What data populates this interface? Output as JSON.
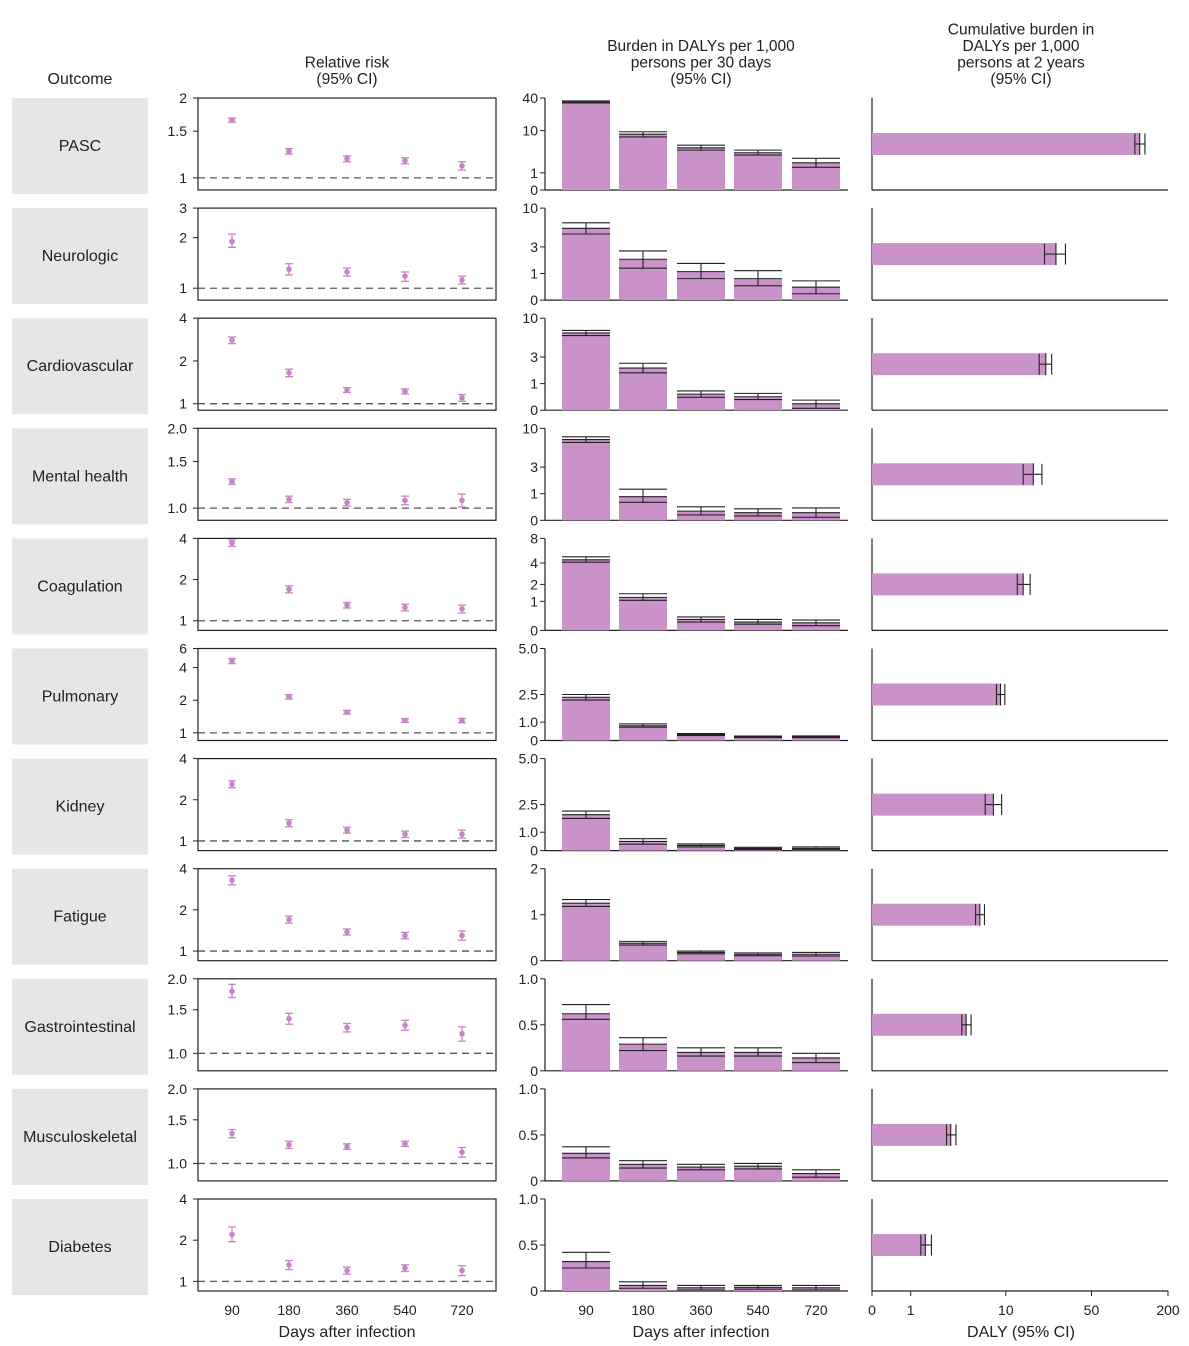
{
  "colors": {
    "accent": "#c993c9",
    "marker": "#c784c7",
    "outcome_box": "#e6e6e6",
    "axis": "#222222",
    "reference_line": "#555555"
  },
  "headers": {
    "outcome": "Outcome",
    "rr": [
      "Relative risk",
      "(95% CI)"
    ],
    "burden": [
      "Burden in DALYs per 1,000",
      "persons per 30 days",
      "(95% CI)"
    ],
    "cumulative": [
      "Cumulative burden in",
      "DALYs per 1,000",
      "persons at 2 years",
      "(95% CI)"
    ]
  },
  "x_axes": {
    "days": [
      "90",
      "180",
      "360",
      "540",
      "720"
    ],
    "rr_label": "Days after infection",
    "burden_label": "Days after infection",
    "cum_ticks": [
      "0",
      "1",
      "10",
      "50",
      "200"
    ],
    "cum_tick_values": [
      0,
      1,
      10,
      50,
      200
    ],
    "cum_label": "DALY (95% CI)"
  },
  "chart_data": [
    {
      "type": "scatter",
      "name": "Relative risk (95% CI)",
      "x": [
        90,
        180,
        360,
        540,
        720
      ],
      "rows": [
        {
          "outcome": "PASC",
          "ticks": [
            "2",
            "1.5",
            "1"
          ],
          "tick_values": [
            2,
            1.5,
            1
          ],
          "ylim": [
            0.9,
            2
          ],
          "values": [
            1.65,
            1.26,
            1.18,
            1.16,
            1.11
          ],
          "lo": [
            1.62,
            1.23,
            1.15,
            1.13,
            1.07
          ],
          "hi": [
            1.68,
            1.29,
            1.21,
            1.19,
            1.15
          ]
        },
        {
          "outcome": "Neurologic",
          "ticks": [
            "3",
            "2",
            "1"
          ],
          "tick_values": [
            3,
            2,
            1
          ],
          "ylim": [
            0.85,
            3
          ],
          "values": [
            1.9,
            1.3,
            1.25,
            1.18,
            1.12
          ],
          "lo": [
            1.75,
            1.2,
            1.18,
            1.1,
            1.06
          ],
          "hi": [
            2.1,
            1.4,
            1.32,
            1.25,
            1.18
          ]
        },
        {
          "outcome": "Cardiovascular",
          "ticks": [
            "4",
            "2",
            "1"
          ],
          "tick_values": [
            4,
            2,
            1
          ],
          "ylim": [
            0.9,
            4
          ],
          "values": [
            2.8,
            1.65,
            1.25,
            1.22,
            1.1
          ],
          "lo": [
            2.65,
            1.55,
            1.2,
            1.17,
            1.04
          ],
          "hi": [
            2.95,
            1.75,
            1.3,
            1.27,
            1.16
          ]
        },
        {
          "outcome": "Mental health",
          "ticks": [
            "2.0",
            "1.5",
            "1.0"
          ],
          "tick_values": [
            2,
            1.5,
            1
          ],
          "ylim": [
            0.9,
            2
          ],
          "values": [
            1.26,
            1.08,
            1.05,
            1.07,
            1.07
          ],
          "lo": [
            1.23,
            1.05,
            1.02,
            1.03,
            1.01
          ],
          "hi": [
            1.29,
            1.11,
            1.08,
            1.11,
            1.13
          ]
        },
        {
          "outcome": "Coagulation",
          "ticks": [
            "4",
            "2",
            "1"
          ],
          "tick_values": [
            4,
            2,
            1
          ],
          "ylim": [
            0.85,
            4
          ],
          "values": [
            3.7,
            1.7,
            1.3,
            1.25,
            1.22
          ],
          "lo": [
            3.5,
            1.6,
            1.24,
            1.18,
            1.14
          ],
          "hi": [
            3.9,
            1.8,
            1.36,
            1.32,
            1.3
          ]
        },
        {
          "outcome": "Pulmonary",
          "ticks": [
            "6",
            "4",
            "2",
            "1"
          ],
          "tick_values": [
            6,
            4,
            2,
            1
          ],
          "ylim": [
            0.85,
            6
          ],
          "values": [
            4.6,
            2.15,
            1.55,
            1.3,
            1.3
          ],
          "lo": [
            4.35,
            2.05,
            1.49,
            1.25,
            1.24
          ],
          "hi": [
            4.85,
            2.25,
            1.61,
            1.35,
            1.36
          ]
        },
        {
          "outcome": "Kidney",
          "ticks": [
            "4",
            "2",
            "1"
          ],
          "tick_values": [
            4,
            2,
            1
          ],
          "ylim": [
            0.85,
            4
          ],
          "values": [
            2.6,
            1.35,
            1.2,
            1.12,
            1.12
          ],
          "lo": [
            2.45,
            1.27,
            1.14,
            1.06,
            1.05
          ],
          "hi": [
            2.75,
            1.43,
            1.26,
            1.18,
            1.2
          ]
        },
        {
          "outcome": "Fatigue",
          "ticks": [
            "4",
            "2",
            "1"
          ],
          "tick_values": [
            4,
            2,
            1
          ],
          "ylim": [
            0.85,
            4
          ],
          "values": [
            3.3,
            1.7,
            1.38,
            1.3,
            1.3
          ],
          "lo": [
            3.05,
            1.6,
            1.31,
            1.23,
            1.2
          ],
          "hi": [
            3.55,
            1.8,
            1.45,
            1.37,
            1.4
          ]
        },
        {
          "outcome": "Gastrointestinal",
          "ticks": [
            "2.0",
            "1.5",
            "1.0"
          ],
          "tick_values": [
            2,
            1.5,
            1
          ],
          "ylim": [
            0.85,
            2
          ],
          "values": [
            1.78,
            1.38,
            1.27,
            1.3,
            1.2
          ],
          "lo": [
            1.68,
            1.31,
            1.22,
            1.24,
            1.12
          ],
          "hi": [
            1.9,
            1.45,
            1.32,
            1.36,
            1.28
          ]
        },
        {
          "outcome": "Musculoskeletal",
          "ticks": [
            "2.0",
            "1.5",
            "1.0"
          ],
          "tick_values": [
            2,
            1.5,
            1
          ],
          "ylim": [
            0.85,
            2
          ],
          "values": [
            1.32,
            1.19,
            1.17,
            1.2,
            1.11
          ],
          "lo": [
            1.27,
            1.15,
            1.14,
            1.17,
            1.06
          ],
          "hi": [
            1.37,
            1.23,
            1.2,
            1.23,
            1.16
          ]
        },
        {
          "outcome": "Diabetes",
          "ticks": [
            "4",
            "2",
            "1"
          ],
          "tick_values": [
            4,
            2,
            1
          ],
          "ylim": [
            0.85,
            4
          ],
          "values": [
            2.2,
            1.32,
            1.2,
            1.25,
            1.2
          ],
          "lo": [
            1.95,
            1.22,
            1.13,
            1.18,
            1.1
          ],
          "hi": [
            2.5,
            1.42,
            1.27,
            1.32,
            1.3
          ]
        }
      ]
    },
    {
      "type": "bar",
      "name": "Burden in DALYs per 1,000 persons per 30 days (95% CI)",
      "x": [
        90,
        180,
        360,
        540,
        720
      ],
      "rows": [
        {
          "outcome": "PASC",
          "scale": "pseudo-log",
          "ticks": [
            "40",
            "10",
            "1",
            "0"
          ],
          "tick_values": [
            40,
            10,
            1,
            0
          ],
          "ymax": 40,
          "values": [
            34,
            8.5,
            4.5,
            3.5,
            2.0
          ],
          "lo": [
            32.5,
            7.5,
            4.0,
            3.1,
            1.5
          ],
          "hi": [
            35.5,
            9.5,
            5.1,
            4.0,
            2.6
          ]
        },
        {
          "outcome": "Neurologic",
          "scale": "pseudo-log",
          "ticks": [
            "10",
            "3",
            "1",
            "0"
          ],
          "tick_values": [
            10,
            3,
            1,
            0
          ],
          "ymax": 10,
          "values": [
            5.5,
            1.9,
            1.1,
            0.75,
            0.4
          ],
          "lo": [
            4.6,
            1.3,
            0.75,
            0.45,
            0.18
          ],
          "hi": [
            6.5,
            2.6,
            1.6,
            1.15,
            0.65
          ]
        },
        {
          "outcome": "Cardiovascular",
          "scale": "pseudo-log",
          "ticks": [
            "10",
            "3",
            "1",
            "0"
          ],
          "tick_values": [
            10,
            3,
            1,
            0
          ],
          "ymax": 10,
          "values": [
            6.5,
            2.0,
            0.52,
            0.42,
            0.18
          ],
          "lo": [
            6.0,
            1.65,
            0.4,
            0.32,
            0.05
          ],
          "hi": [
            7.0,
            2.4,
            0.65,
            0.55,
            0.3
          ]
        },
        {
          "outcome": "Mental health",
          "scale": "pseudo-log",
          "ticks": [
            "10",
            "3",
            "1",
            "0"
          ],
          "tick_values": [
            10,
            3,
            1,
            0
          ],
          "ymax": 10,
          "values": [
            7.2,
            0.85,
            0.27,
            0.22,
            0.22
          ],
          "lo": [
            6.6,
            0.6,
            0.15,
            0.12,
            0.08
          ],
          "hi": [
            7.8,
            1.25,
            0.42,
            0.35,
            0.38
          ]
        },
        {
          "outcome": "Coagulation",
          "scale": "pseudo-log",
          "ticks": [
            "8",
            "4",
            "2",
            "1",
            "0"
          ],
          "tick_values": [
            8,
            4,
            2,
            1,
            0
          ],
          "ymax": 8,
          "values": [
            4.4,
            1.2,
            0.3,
            0.22,
            0.2
          ],
          "lo": [
            4.1,
            1.05,
            0.22,
            0.16,
            0.12
          ],
          "hi": [
            4.8,
            1.4,
            0.38,
            0.3,
            0.28
          ]
        },
        {
          "outcome": "Pulmonary",
          "scale": "linear",
          "ticks": [
            "5.0",
            "2.5",
            "1.0",
            "0"
          ],
          "tick_values": [
            5,
            2.5,
            1,
            0
          ],
          "ymax": 5,
          "values": [
            2.35,
            0.8,
            0.32,
            0.2,
            0.2
          ],
          "lo": [
            2.2,
            0.72,
            0.27,
            0.16,
            0.15
          ],
          "hi": [
            2.5,
            0.9,
            0.38,
            0.24,
            0.25
          ]
        },
        {
          "outcome": "Kidney",
          "scale": "linear",
          "ticks": [
            "5.0",
            "2.5",
            "1.0",
            "0"
          ],
          "tick_values": [
            5,
            2.5,
            1,
            0
          ],
          "ymax": 5,
          "values": [
            1.95,
            0.5,
            0.28,
            0.12,
            0.12
          ],
          "lo": [
            1.75,
            0.35,
            0.2,
            0.06,
            0.05
          ],
          "hi": [
            2.15,
            0.65,
            0.36,
            0.18,
            0.2
          ]
        },
        {
          "outcome": "Fatigue",
          "scale": "linear",
          "ticks": [
            "2",
            "1",
            "0"
          ],
          "tick_values": [
            2,
            1,
            0
          ],
          "ymax": 2,
          "values": [
            1.25,
            0.38,
            0.18,
            0.14,
            0.14
          ],
          "lo": [
            1.18,
            0.34,
            0.15,
            0.11,
            0.1
          ],
          "hi": [
            1.33,
            0.42,
            0.21,
            0.17,
            0.18
          ]
        },
        {
          "outcome": "Gastrointestinal",
          "scale": "linear",
          "ticks": [
            "1.0",
            "0.5",
            "0"
          ],
          "tick_values": [
            1,
            0.5,
            0
          ],
          "ymax": 1,
          "values": [
            0.62,
            0.29,
            0.2,
            0.2,
            0.14
          ],
          "lo": [
            0.56,
            0.22,
            0.16,
            0.16,
            0.09
          ],
          "hi": [
            0.72,
            0.36,
            0.25,
            0.25,
            0.19
          ]
        },
        {
          "outcome": "Musculoskeletal",
          "scale": "linear",
          "ticks": [
            "1.0",
            "0.5",
            "0"
          ],
          "tick_values": [
            1,
            0.5,
            0
          ],
          "ymax": 1,
          "values": [
            0.3,
            0.18,
            0.15,
            0.16,
            0.08
          ],
          "lo": [
            0.25,
            0.14,
            0.12,
            0.13,
            0.04
          ],
          "hi": [
            0.37,
            0.22,
            0.18,
            0.19,
            0.12
          ]
        },
        {
          "outcome": "Diabetes",
          "scale": "linear",
          "ticks": [
            "1.0",
            "0.5",
            "0"
          ],
          "tick_values": [
            1,
            0.5,
            0
          ],
          "ymax": 1,
          "values": [
            0.32,
            0.06,
            0.035,
            0.04,
            0.035
          ],
          "lo": [
            0.25,
            0.03,
            0.01,
            0.02,
            0.01
          ],
          "hi": [
            0.42,
            0.1,
            0.06,
            0.06,
            0.06
          ]
        }
      ]
    },
    {
      "type": "bar",
      "orientation": "horizontal",
      "name": "Cumulative burden in DALYs per 1,000 persons at 2 years (95% CI)",
      "scale": "pseudo-log",
      "xlim": [
        0,
        200
      ],
      "rows": [
        {
          "outcome": "PASC",
          "value": 120,
          "lo": 110,
          "hi": 132
        },
        {
          "outcome": "Neurologic",
          "value": 26,
          "lo": 21,
          "hi": 31
        },
        {
          "outcome": "Cardiovascular",
          "value": 21.5,
          "lo": 19,
          "hi": 24
        },
        {
          "outcome": "Mental health",
          "value": 17,
          "lo": 14,
          "hi": 20
        },
        {
          "outcome": "Coagulation",
          "value": 14,
          "lo": 12.5,
          "hi": 16
        },
        {
          "outcome": "Pulmonary",
          "value": 9,
          "lo": 8.3,
          "hi": 9.8
        },
        {
          "outcome": "Kidney",
          "value": 7.8,
          "lo": 6.6,
          "hi": 9.2
        },
        {
          "outcome": "Fatigue",
          "value": 5.9,
          "lo": 5.4,
          "hi": 6.5
        },
        {
          "outcome": "Gastrointestinal",
          "value": 4.4,
          "lo": 4.0,
          "hi": 4.9
        },
        {
          "outcome": "Musculoskeletal",
          "value": 3.1,
          "lo": 2.8,
          "hi": 3.5
        },
        {
          "outcome": "Diabetes",
          "value": 1.6,
          "lo": 1.4,
          "hi": 1.9
        }
      ]
    }
  ]
}
